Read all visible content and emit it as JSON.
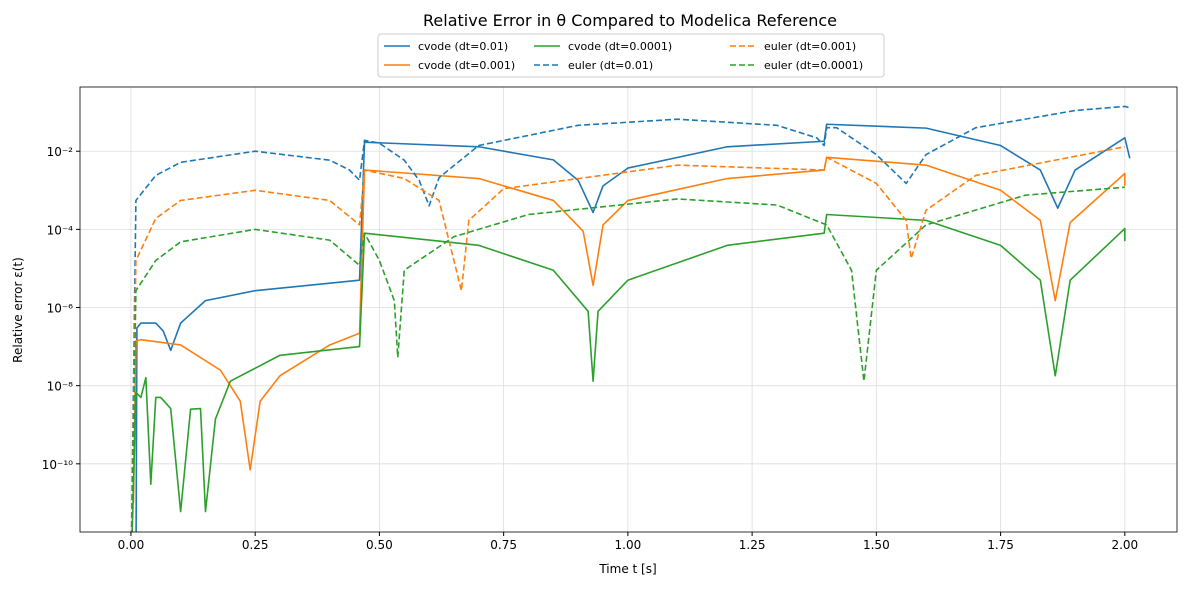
{
  "chart_data": {
    "type": "line",
    "title": "Relative Error in θ Compared to Modelica Reference",
    "x_label": "Time t [s]",
    "y_label": "Relative error ε(t)",
    "y_scale": "log",
    "grid": true,
    "legend_position": "top",
    "xlim": [
      -0.1025,
      2.105
    ],
    "ylim": [
      1.8e-12,
      0.44
    ],
    "xticks": [
      {
        "value": 0,
        "label": "0.00"
      },
      {
        "value": 0.25,
        "label": "0.25"
      },
      {
        "value": 0.5,
        "label": "0.50"
      },
      {
        "value": 0.75,
        "label": "0.75"
      },
      {
        "value": 1,
        "label": "1.00"
      },
      {
        "value": 1.25,
        "label": "1.25"
      },
      {
        "value": 1.5,
        "label": "1.50"
      },
      {
        "value": 1.75,
        "label": "1.75"
      },
      {
        "value": 2,
        "label": "2.00"
      }
    ],
    "yticks": [
      {
        "value": 1e-10,
        "label": "10⁻¹⁰"
      },
      {
        "value": 1e-08,
        "label": "10⁻⁸"
      },
      {
        "value": 1e-06,
        "label": "10⁻⁶"
      },
      {
        "value": 0.0001,
        "label": "10⁻⁴"
      },
      {
        "value": 0.01,
        "label": "10⁻²"
      }
    ],
    "series": [
      {
        "name": "cvode (dt=0.01)",
        "color": "#1f77b4",
        "dashed": false,
        "x": [
          0.01,
          0.012,
          0.02,
          0.05,
          0.065,
          0.08,
          0.1,
          0.15,
          0.25,
          0.46,
          0.47,
          0.7,
          0.85,
          0.9,
          0.93,
          0.95,
          1.0,
          1.2,
          1.395,
          1.4,
          1.6,
          1.75,
          1.83,
          1.865,
          1.9,
          2.0,
          2.01
        ],
        "values": [
          1e-13,
          3e-07,
          4e-07,
          4e-07,
          2.5e-07,
          8e-08,
          4e-07,
          1.5e-06,
          2.7e-06,
          5e-06,
          0.017,
          0.013,
          0.006,
          0.0018,
          0.00027,
          0.0013,
          0.0037,
          0.013,
          0.018,
          0.049,
          0.039,
          0.014,
          0.0033,
          0.00035,
          0.0033,
          0.022,
          0.0066
        ]
      },
      {
        "name": "cvode (dt=0.001)",
        "color": "#ff7f0e",
        "dashed": false,
        "x": [
          0.005,
          0.01,
          0.02,
          0.1,
          0.18,
          0.22,
          0.24,
          0.26,
          0.3,
          0.4,
          0.46,
          0.47,
          0.7,
          0.85,
          0.91,
          0.93,
          0.95,
          1.0,
          1.2,
          1.395,
          1.4,
          1.6,
          1.75,
          1.83,
          1.86,
          1.89,
          2.0,
          2.0
        ],
        "values": [
          1e-11,
          1.4e-07,
          1.5e-07,
          1.1e-07,
          2.5e-08,
          4e-09,
          7e-11,
          4e-09,
          1.8e-08,
          1.1e-07,
          2.2e-07,
          0.0033,
          0.002,
          0.00055,
          9e-05,
          3.7e-06,
          0.00013,
          0.00055,
          0.002,
          0.0033,
          0.007,
          0.0044,
          0.001,
          0.00017,
          1.5e-06,
          0.00015,
          0.0027,
          0.0013
        ]
      },
      {
        "name": "cvode (dt=0.0001)",
        "color": "#2ca02c",
        "dashed": false,
        "x": [
          0.0,
          0.01,
          0.02,
          0.03,
          0.04,
          0.05,
          0.06,
          0.08,
          0.1,
          0.12,
          0.14,
          0.15,
          0.17,
          0.2,
          0.3,
          0.46,
          0.47,
          0.7,
          0.85,
          0.92,
          0.93,
          0.94,
          1.0,
          1.2,
          1.395,
          1.4,
          1.6,
          1.75,
          1.83,
          1.86,
          1.89,
          2.0,
          2.0
        ],
        "values": [
          1e-13,
          6.7e-09,
          5e-09,
          1.6e-08,
          3e-11,
          5e-09,
          5e-09,
          2.6e-09,
          6e-12,
          2.5e-09,
          2.6e-09,
          6e-12,
          1.4e-09,
          1.3e-08,
          6e-08,
          1e-07,
          8e-05,
          3.9e-05,
          9e-06,
          8e-07,
          1.3e-08,
          8e-07,
          5e-06,
          3.9e-05,
          8e-05,
          0.00024,
          0.00017,
          3.9e-05,
          5e-06,
          1.8e-08,
          5e-06,
          0.000105,
          5e-05
        ]
      },
      {
        "name": "euler (dt=0.01)",
        "color": "#1f77b4",
        "dashed": true,
        "x": [
          0.0,
          0.01,
          0.05,
          0.1,
          0.25,
          0.4,
          0.44,
          0.46,
          0.47,
          0.5,
          0.55,
          0.58,
          0.6,
          0.62,
          0.7,
          0.9,
          1.1,
          1.3,
          1.38,
          1.395,
          1.4,
          1.42,
          1.5,
          1.56,
          1.6,
          1.7,
          1.9,
          2.0,
          2.01
        ],
        "values": [
          1e-13,
          0.00055,
          0.0024,
          0.0052,
          0.01,
          0.0059,
          0.0033,
          0.0018,
          0.019,
          0.016,
          0.0059,
          0.0018,
          0.0004,
          0.0021,
          0.014,
          0.046,
          0.066,
          0.046,
          0.022,
          0.014,
          0.04,
          0.04,
          0.0082,
          0.0015,
          0.0082,
          0.04,
          0.11,
          0.14,
          0.13
        ]
      },
      {
        "name": "euler (dt=0.001)",
        "color": "#ff7f0e",
        "dashed": true,
        "x": [
          0.0,
          0.01,
          0.05,
          0.1,
          0.25,
          0.4,
          0.46,
          0.47,
          0.55,
          0.62,
          0.665,
          0.68,
          0.75,
          1.1,
          1.395,
          1.4,
          1.5,
          1.56,
          1.57,
          1.6,
          1.7,
          2.0
        ],
        "values": [
          1e-13,
          1.6e-05,
          0.00019,
          0.00055,
          0.001,
          0.00055,
          0.00013,
          0.0033,
          0.002,
          0.00055,
          2.7e-06,
          0.00017,
          0.0011,
          0.0044,
          0.0033,
          0.007,
          0.0015,
          0.00017,
          1.8e-05,
          0.00031,
          0.0024,
          0.013
        ]
      },
      {
        "name": "euler (dt=0.0001)",
        "color": "#2ca02c",
        "dashed": true,
        "x": [
          0.0,
          0.01,
          0.05,
          0.1,
          0.25,
          0.4,
          0.46,
          0.47,
          0.5,
          0.53,
          0.537,
          0.55,
          0.65,
          0.8,
          1.1,
          1.3,
          1.4,
          1.45,
          1.475,
          1.5,
          1.6,
          1.8,
          2.0
        ],
        "values": [
          1e-13,
          2.7e-06,
          1.6e-05,
          4.8e-05,
          0.0001,
          5.3e-05,
          1.2e-05,
          8e-05,
          1.6e-05,
          1.5e-06,
          5.3e-08,
          9e-06,
          6.5e-05,
          0.00024,
          0.0006,
          0.00042,
          0.00013,
          9e-06,
          1.3e-08,
          9e-06,
          0.00013,
          0.00075,
          0.0012
        ]
      }
    ]
  }
}
